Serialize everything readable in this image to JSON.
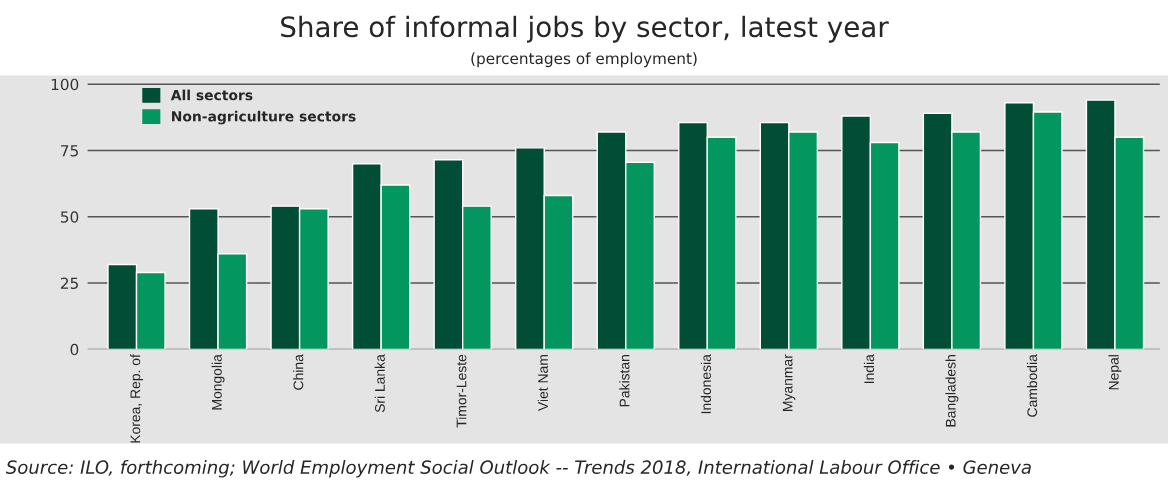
{
  "chart_data": {
    "type": "bar",
    "title": "Share of informal jobs by sector, latest year",
    "subtitle": "(percentages of employment)",
    "categories": [
      "Korea, Rep. of",
      "Mongolia",
      "China",
      "Sri Lanka",
      "Timor-Leste",
      "Viet Nam",
      "Pakistan",
      "Indonesia",
      "Myanmar",
      "India",
      "Bangladesh",
      "Cambodia",
      "Nepal"
    ],
    "series": [
      {
        "name": "All sectors",
        "color": "#024d35",
        "values": [
          32,
          53,
          54,
          70,
          71.5,
          76,
          82,
          85.5,
          85.5,
          88,
          89,
          93,
          94
        ]
      },
      {
        "name": "Non-agriculture sectors",
        "color": "#03965e",
        "values": [
          29,
          36,
          53,
          62,
          54,
          58,
          70.5,
          80,
          82,
          78,
          82,
          89.5,
          80
        ]
      }
    ],
    "ylim": [
      0,
      103
    ],
    "yticks": [
      0,
      25,
      50,
      75,
      100
    ],
    "grid": "y",
    "legend": "top left",
    "annotations": [
      "Source: ILO, forthcoming; World Employment Social Outlook -- Trends 2018, International Labour Office • Geneva"
    ]
  }
}
